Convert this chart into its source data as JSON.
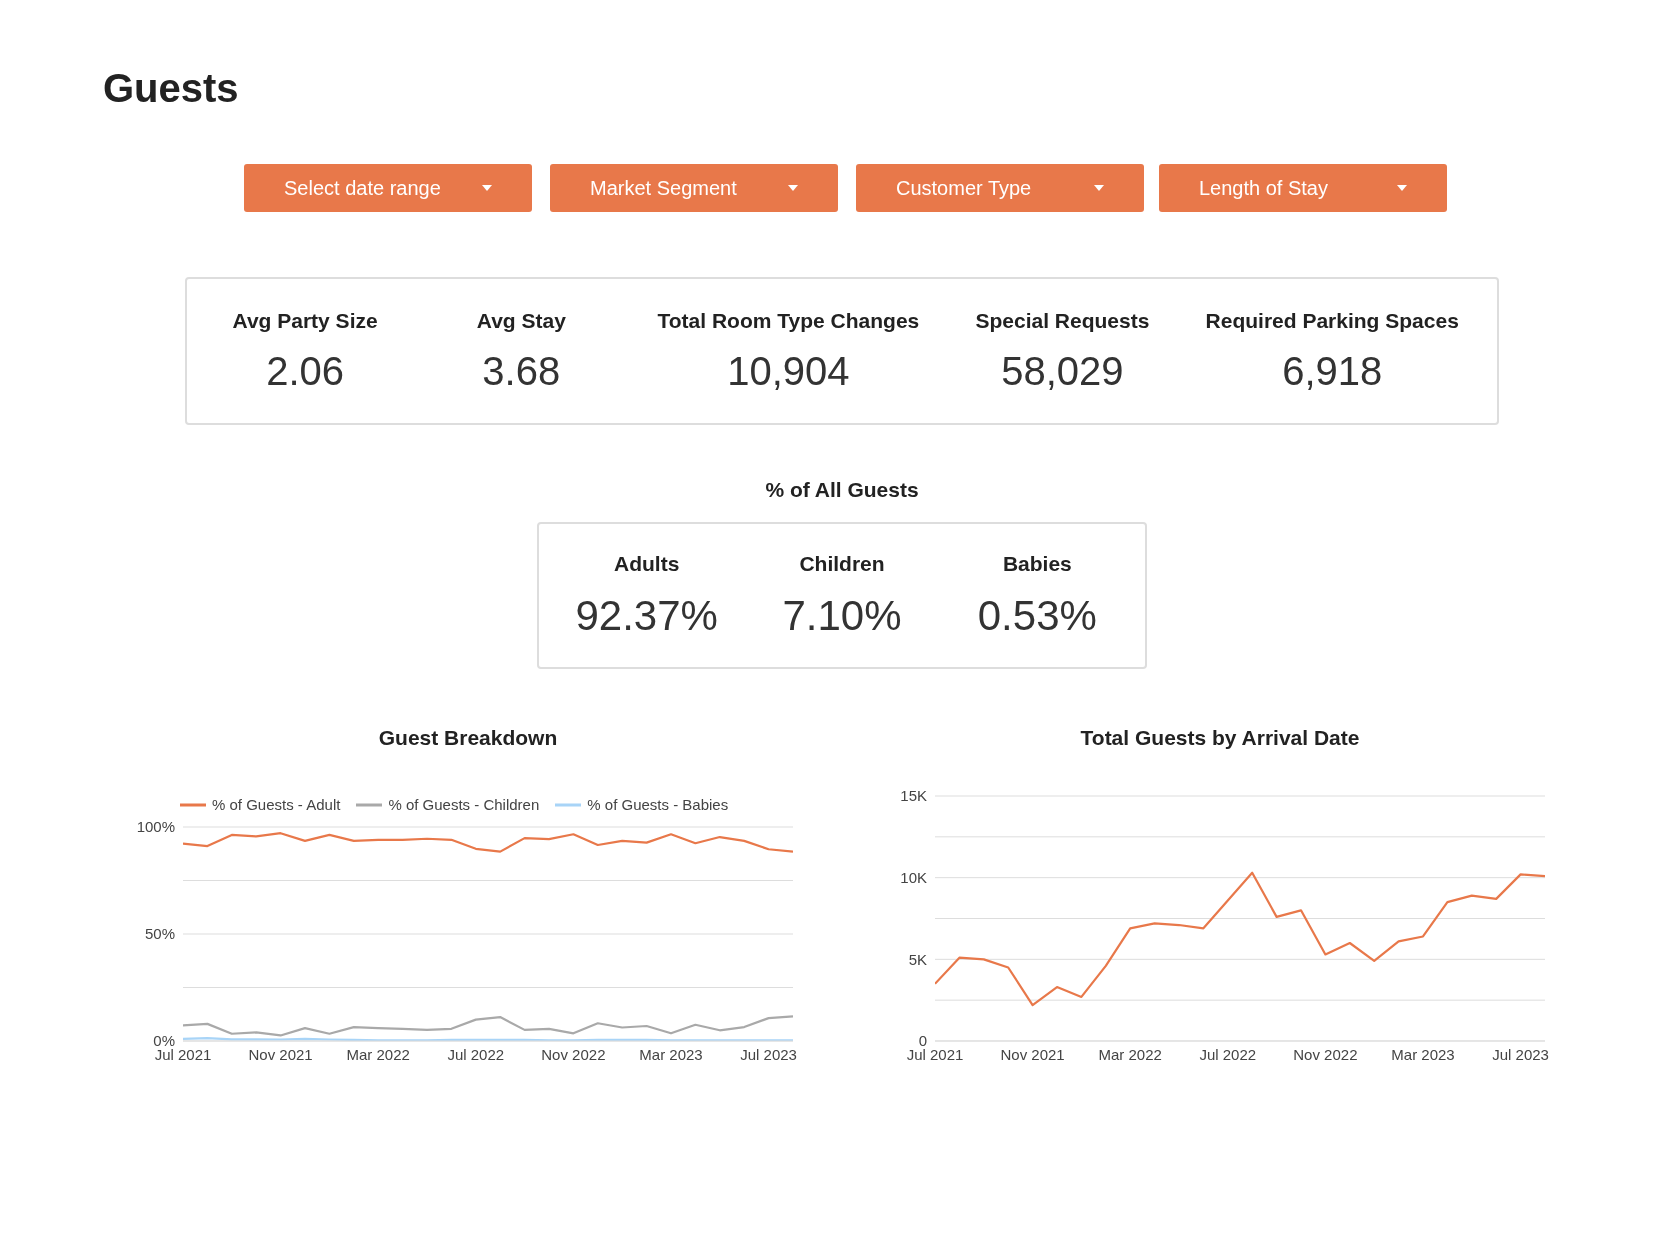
{
  "chart_data": [
    {
      "type": "other",
      "title": "Guests",
      "annotations": [
        "Select date range",
        "Market Segment",
        "Customer Type",
        "Length of Stay"
      ]
    },
    {
      "type": "other",
      "annotations": [
        "Avg Party Size",
        "2.06",
        "Avg Stay",
        "3.68",
        "Total Room Type Changes",
        "10,904",
        "Special Requests",
        "58,029",
        "Required Parking Spaces",
        "6,918"
      ]
    },
    {
      "type": "other",
      "title": "% of All Guests",
      "annotations": [
        "Adults",
        "92.37%",
        "Children",
        "7.10%",
        "Babies",
        "0.53%"
      ]
    },
    {
      "type": "line",
      "title": "Guest Breakdown",
      "x": [
        "2021-07",
        "2021-08",
        "2021-09",
        "2021-10",
        "2021-11",
        "2021-12",
        "2022-01",
        "2022-02",
        "2022-03",
        "2022-04",
        "2022-05",
        "2022-06",
        "2022-07",
        "2022-08",
        "2022-09",
        "2022-10",
        "2022-11",
        "2022-12",
        "2023-01",
        "2023-02",
        "2023-03",
        "2023-04",
        "2023-05",
        "2023-06",
        "2023-07",
        "2023-08"
      ],
      "series": [
        {
          "name": "% of Guests - Adult",
          "color": "#e8784a",
          "values": [
            92.2,
            91.1,
            96.3,
            95.6,
            97.1,
            93.5,
            96.3,
            93.5,
            94,
            94,
            94.5,
            94,
            89.8,
            88.5,
            94.8,
            94.3,
            96.6,
            91.6,
            93.5,
            92.7,
            96.6,
            92.4,
            95.3,
            93.5,
            89.6,
            88.5
          ]
        },
        {
          "name": "% of Guests - Children",
          "color": "#a9a9a9",
          "values": [
            7.3,
            8,
            3.4,
            4,
            2.6,
            6,
            3.4,
            6.5,
            6,
            5.7,
            5.2,
            5.7,
            10,
            11.2,
            5.2,
            5.7,
            3.6,
            8.3,
            6.3,
            7,
            3.6,
            7.6,
            5,
            6.5,
            10.7,
            11.5
          ]
        },
        {
          "name": "% of Guests - Babies",
          "color": "#a8d4f7",
          "values": [
            1,
            1.3,
            0.8,
            0.8,
            0.7,
            1,
            0.7,
            0.5,
            0.3,
            0.3,
            0.3,
            0.5,
            0.5,
            0.5,
            0.5,
            0.3,
            0.3,
            0.5,
            0.5,
            0.5,
            0.3,
            0.3,
            0.3,
            0.3,
            0.3,
            0.3
          ]
        }
      ],
      "xlim": [
        "2021-07",
        "2023-08"
      ],
      "xticks": [
        {
          "value": "2021-07",
          "label": "Jul 2021"
        },
        {
          "value": "2021-11",
          "label": "Nov 2021"
        },
        {
          "value": "2022-03",
          "label": "Mar 2022"
        },
        {
          "value": "2022-07",
          "label": "Jul 2022"
        },
        {
          "value": "2022-11",
          "label": "Nov 2022"
        },
        {
          "value": "2023-03",
          "label": "Mar 2023"
        },
        {
          "value": "2023-07",
          "label": "Jul 2023"
        }
      ],
      "ylim": [
        0,
        100
      ],
      "yticks": [
        {
          "value": 0,
          "label": "0%"
        },
        {
          "value": 25,
          "label": null
        },
        {
          "value": 50,
          "label": "50%"
        },
        {
          "value": 75,
          "label": null
        },
        {
          "value": 100,
          "label": "100%"
        }
      ],
      "grid": "y",
      "legend": "top left",
      "marker": "none",
      "line_style": "solid"
    },
    {
      "type": "line",
      "title": "Total Guests by Arrival Date",
      "x": [
        "2021-07",
        "2021-08",
        "2021-09",
        "2021-10",
        "2021-11",
        "2021-12",
        "2022-01",
        "2022-02",
        "2022-03",
        "2022-04",
        "2022-05",
        "2022-06",
        "2022-07",
        "2022-08",
        "2022-09",
        "2022-10",
        "2022-11",
        "2022-12",
        "2023-01",
        "2023-02",
        "2023-03",
        "2023-04",
        "2023-05",
        "2023-06",
        "2023-07",
        "2023-08"
      ],
      "series": [
        {
          "color": "#e8784a",
          "values": [
            3500,
            5100,
            5000,
            4500,
            2200,
            3300,
            2700,
            4600,
            6900,
            7200,
            7100,
            6900,
            8600,
            10300,
            7600,
            8000,
            5300,
            6000,
            4900,
            6100,
            6400,
            8500,
            8900,
            8700,
            10200,
            10100
          ]
        }
      ],
      "xlim": [
        "2021-07",
        "2023-08"
      ],
      "xticks": [
        {
          "value": "2021-07",
          "label": "Jul 2021"
        },
        {
          "value": "2021-11",
          "label": "Nov 2021"
        },
        {
          "value": "2022-03",
          "label": "Mar 2022"
        },
        {
          "value": "2022-07",
          "label": "Jul 2022"
        },
        {
          "value": "2022-11",
          "label": "Nov 2022"
        },
        {
          "value": "2023-03",
          "label": "Mar 2023"
        },
        {
          "value": "2023-07",
          "label": "Jul 2023"
        }
      ],
      "ylim": [
        0,
        15000
      ],
      "yticks": [
        0,
        {
          "value": 2500,
          "label": null
        },
        {
          "value": 5000,
          "label": "5K"
        },
        {
          "value": 7500,
          "label": null
        },
        {
          "value": 10000,
          "label": "10K"
        },
        {
          "value": 12500,
          "label": null
        },
        {
          "value": 15000,
          "label": "15K"
        }
      ],
      "grid": "y",
      "marker": "none",
      "line_style": "solid"
    }
  ]
}
